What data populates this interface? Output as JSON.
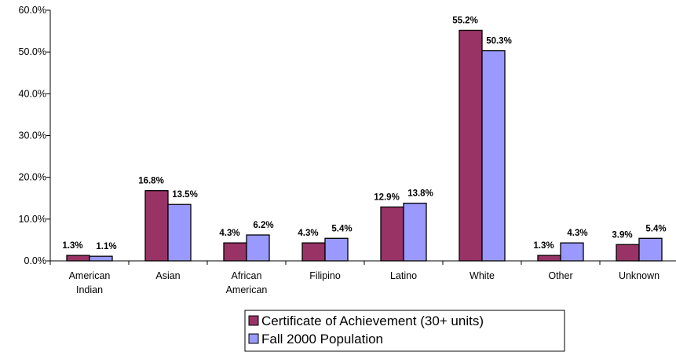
{
  "chart_data": {
    "type": "bar",
    "categories": [
      [
        "American",
        "Indian"
      ],
      [
        "Asian"
      ],
      [
        "African",
        "American"
      ],
      [
        "Filipino"
      ],
      [
        "Latino"
      ],
      [
        "White"
      ],
      [
        "Other"
      ],
      [
        "Unknown"
      ]
    ],
    "series": [
      {
        "name": "Certificate of Achievement (30+ units)",
        "color": "#993366",
        "values": [
          1.3,
          16.8,
          4.3,
          4.3,
          12.9,
          55.2,
          1.3,
          3.9
        ],
        "labels": [
          "1.3%",
          "16.8%",
          "4.3%",
          "4.3%",
          "12.9%",
          "55.2%",
          "1.3%",
          "3.9%"
        ]
      },
      {
        "name": "Fall 2000 Population",
        "color": "#9999ff",
        "values": [
          1.1,
          13.5,
          6.2,
          5.4,
          13.8,
          50.3,
          4.3,
          5.4
        ],
        "labels": [
          "1.1%",
          "13.5%",
          "6.2%",
          "5.4%",
          "13.8%",
          "50.3%",
          "4.3%",
          "5.4%"
        ]
      }
    ],
    "ylim": [
      0,
      60
    ],
    "yticks": [
      "0.0%",
      "10.0%",
      "20.0%",
      "30.0%",
      "40.0%",
      "50.0%",
      "60.0%"
    ],
    "ytick_values": [
      0,
      10,
      20,
      30,
      40,
      50,
      60
    ],
    "title": "",
    "xlabel": "",
    "ylabel": "",
    "grid": false,
    "legend_position": "bottom"
  }
}
